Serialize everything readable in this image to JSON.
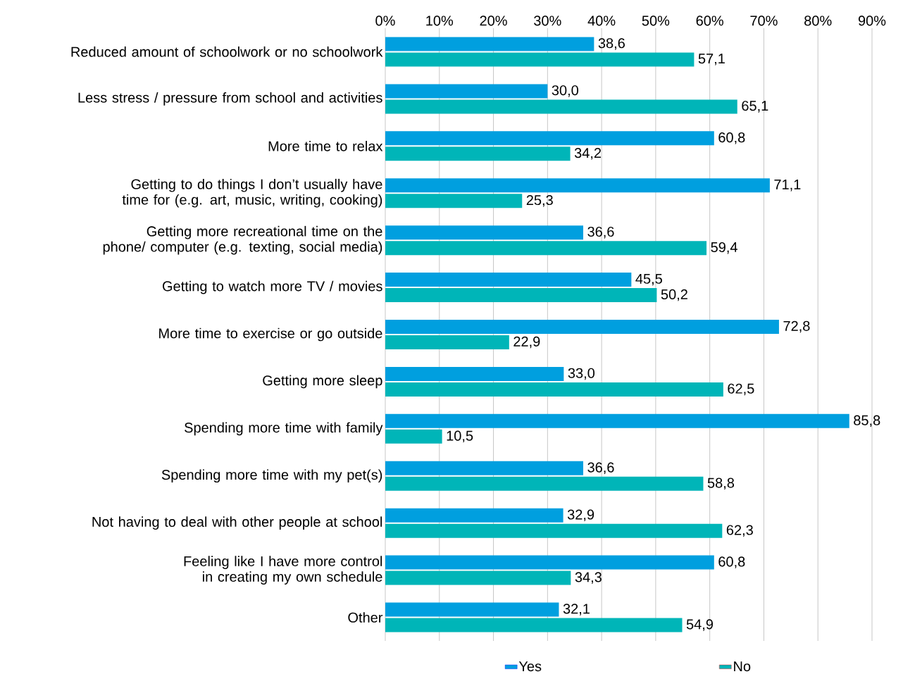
{
  "chart_data": {
    "type": "bar",
    "orientation": "horizontal",
    "categories": [
      "Reduced amount of schoolwork or no schoolwork",
      "Less stress / pressure from school and activities",
      "More time to relax",
      "Getting to do things I don’t usually have time for (e.g. art, music, writing, cooking)",
      "Getting more recreational time on the phone/ computer (e.g. texting, social media)",
      "Getting to watch more TV / movies",
      "More time to exercise or go outside",
      "Getting more sleep",
      "Spending more time with family",
      "Spending more time with my pet(s)",
      "Not having to deal with other people at school",
      "Feeling like I have more control in creating my own schedule",
      "Other"
    ],
    "series": [
      {
        "name": "Yes",
        "color": "#009fdf",
        "values": [
          38.6,
          30.0,
          60.8,
          71.1,
          36.6,
          45.5,
          72.8,
          33.0,
          85.8,
          36.6,
          32.9,
          60.8,
          32.1
        ],
        "value_labels": [
          "38,6",
          "30,0",
          "60,8",
          "71,1",
          "36,6",
          "45,5",
          "72,8",
          "33,0",
          "85,8",
          "36,6",
          "32,9",
          "60,8",
          "32,1"
        ]
      },
      {
        "name": "No",
        "color": "#00b5b8",
        "values": [
          57.1,
          65.1,
          34.2,
          25.3,
          59.4,
          50.2,
          22.9,
          62.5,
          10.5,
          58.8,
          62.3,
          34.3,
          54.9
        ],
        "value_labels": [
          "57,1",
          "65,1",
          "34,2",
          "25,3",
          "59,4",
          "50,2",
          "22,9",
          "62,5",
          "10,5",
          "58,8",
          "62,3",
          "34,3",
          "54,9"
        ]
      }
    ],
    "xlim": [
      0,
      90
    ],
    "xticks": [
      {
        "value": 0,
        "label": "0%"
      },
      {
        "value": 10,
        "label": "10%"
      },
      {
        "value": 20,
        "label": "20%"
      },
      {
        "value": 30,
        "label": "30%"
      },
      {
        "value": 40,
        "label": "40%"
      },
      {
        "value": 50,
        "label": "50%"
      },
      {
        "value": 60,
        "label": "60%"
      },
      {
        "value": 70,
        "label": "70%"
      },
      {
        "value": 80,
        "label": "80%"
      },
      {
        "value": 90,
        "label": "90%"
      }
    ],
    "grid": "x",
    "legend": "bottom"
  }
}
